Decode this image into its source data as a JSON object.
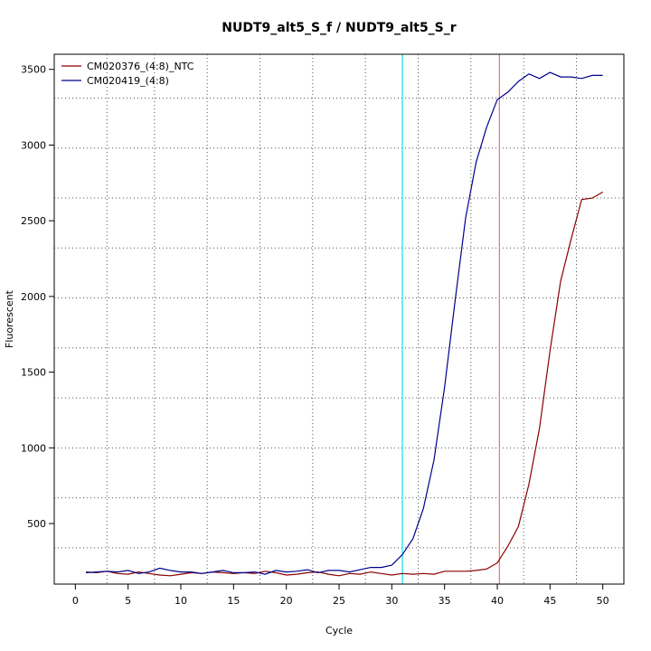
{
  "chart_data": {
    "type": "line",
    "title": "NUDT9_alt5_S_f / NUDT9_alt5_S_r",
    "xlabel": "Cycle",
    "ylabel": "Fluorescent",
    "xlim": [
      -2.0,
      52.0
    ],
    "ylim": [
      100,
      3600
    ],
    "xticks": [
      0,
      5,
      10,
      15,
      20,
      25,
      30,
      35,
      40,
      45,
      50
    ],
    "yticks": [
      500,
      1000,
      1500,
      2000,
      2500,
      3000,
      3500
    ],
    "grid": "dotted",
    "grid_x": [
      3,
      7.5,
      12.5,
      17.5,
      22.5,
      27.5,
      32.5,
      37.5,
      42.5,
      47.5
    ],
    "grid_y": [
      340,
      670,
      1000,
      1330,
      1660,
      1990,
      2320,
      2650,
      2980,
      3310
    ],
    "legend_position": "top-left",
    "vlines": [
      {
        "x": 31,
        "color": "#00e5ee"
      },
      {
        "x": 40.2,
        "color": "#ff6a6a"
      }
    ],
    "series": [
      {
        "name": "CM020376_(4:8)_NTC",
        "color": "#8b0000",
        "x": [
          1,
          2,
          3,
          4,
          5,
          6,
          7,
          8,
          9,
          10,
          11,
          12,
          13,
          14,
          15,
          16,
          17,
          18,
          19,
          20,
          21,
          22,
          23,
          24,
          25,
          26,
          27,
          28,
          29,
          30,
          31,
          32,
          33,
          34,
          35,
          36,
          37,
          38,
          39,
          40,
          41,
          42,
          43,
          44,
          45,
          46,
          47,
          48,
          49,
          50
        ],
        "y": [
          180,
          175,
          185,
          170,
          165,
          180,
          170,
          160,
          155,
          165,
          175,
          170,
          180,
          175,
          170,
          175,
          170,
          185,
          175,
          160,
          165,
          175,
          180,
          165,
          155,
          170,
          165,
          180,
          170,
          160,
          170,
          165,
          170,
          165,
          185,
          185,
          185,
          190,
          200,
          240,
          350,
          480,
          760,
          1130,
          1640,
          2100,
          2380,
          2640,
          2650,
          2690
        ]
      },
      {
        "name": "CM020419_(4:8)",
        "color": "#00008b",
        "x": [
          1,
          2,
          3,
          4,
          5,
          6,
          7,
          8,
          9,
          10,
          11,
          12,
          13,
          14,
          15,
          16,
          17,
          18,
          19,
          20,
          21,
          22,
          23,
          24,
          25,
          26,
          27,
          28,
          29,
          30,
          31,
          32,
          33,
          34,
          35,
          36,
          37,
          38,
          39,
          40,
          41,
          42,
          43,
          44,
          45,
          46,
          47,
          48,
          49,
          50
        ],
        "y": [
          175,
          180,
          185,
          180,
          190,
          170,
          180,
          205,
          190,
          180,
          180,
          170,
          180,
          190,
          175,
          175,
          180,
          165,
          190,
          180,
          185,
          195,
          175,
          190,
          190,
          180,
          195,
          210,
          210,
          225,
          295,
          400,
          600,
          920,
          1400,
          1970,
          2520,
          2890,
          3120,
          3300,
          3350,
          3420,
          3470,
          3440,
          3480,
          3450,
          3450,
          3440,
          3460,
          3460
        ]
      }
    ]
  }
}
